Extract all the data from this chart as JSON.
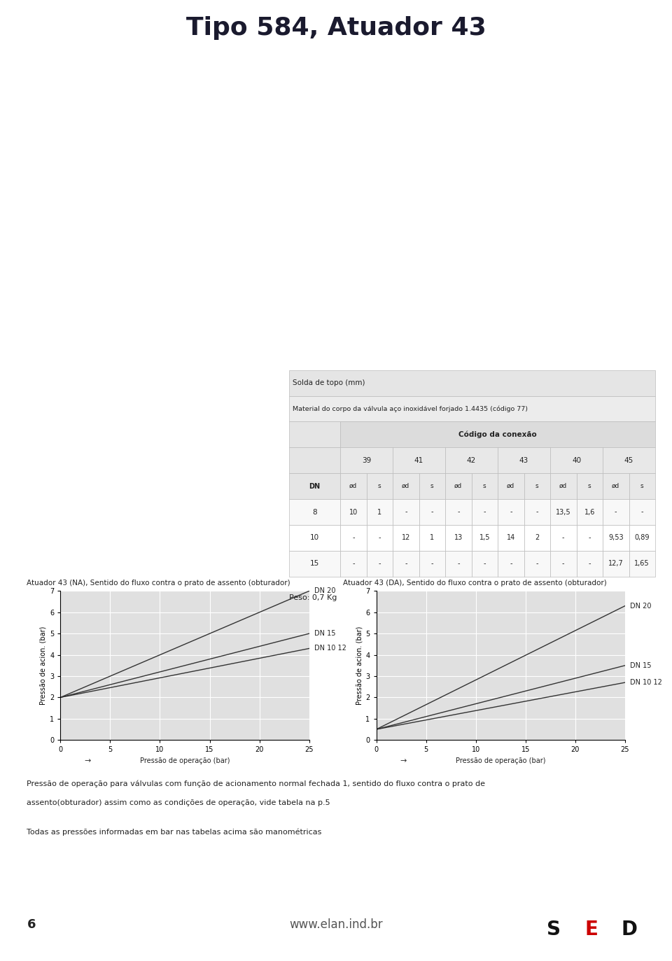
{
  "title": "Tipo 584, Atuador 43",
  "title_bg": "#c5c8d5",
  "title_color": "#1a1a2e",
  "red_line_color": "#cc0000",
  "page_bg": "#ffffff",
  "table_header1": "Solda de topo (mm)",
  "table_header2": "Material do corpo da válvula aço inoxidável forjado 1.4435 (código 77)",
  "table_header3": "Código da conexão",
  "col_group_labels": [
    "39",
    "41",
    "42",
    "43",
    "40",
    "45"
  ],
  "table_subheader": [
    "DN",
    "ød",
    "s",
    "ød",
    "s",
    "ød",
    "s",
    "ød",
    "s",
    "ød",
    "s",
    "ød",
    "s"
  ],
  "table_rows": [
    [
      "8",
      "10",
      "1",
      "-",
      "-",
      "-",
      "-",
      "-",
      "-",
      "13,5",
      "1,6",
      "-",
      "-"
    ],
    [
      "10",
      "-",
      "-",
      "12",
      "1",
      "13",
      "1,5",
      "14",
      "2",
      "-",
      "-",
      "9,53",
      "0,89"
    ],
    [
      "15",
      "-",
      "-",
      "-",
      "-",
      "-",
      "-",
      "-",
      "-",
      "-",
      "-",
      "12,7",
      "1,65"
    ]
  ],
  "peso": "Peso: 0,7 Kg",
  "chart_bg": "#e0e0e0",
  "chart_grid_color": "#ffffff",
  "chart_line_color": "#333333",
  "na_title": "Atuador 43 (NA), Sentido do fluxo contra o prato de assento (obturador)",
  "da_title": "Atuador 43 (DA), Sentido do fluxo contra o prato de assento (obturador)",
  "x_label": "Pressão de operação (bar)",
  "y_label": "Pressão de acion. (bar)",
  "x_range": [
    0,
    25
  ],
  "y_range": [
    0,
    7
  ],
  "x_ticks": [
    0,
    5,
    10,
    15,
    20,
    25
  ],
  "y_ticks": [
    0,
    1,
    2,
    3,
    4,
    5,
    6,
    7
  ],
  "na_lines": [
    {
      "label": "DN 20",
      "x": [
        0,
        25
      ],
      "y": [
        2.0,
        7.0
      ]
    },
    {
      "label": "DN 15",
      "x": [
        0,
        25
      ],
      "y": [
        2.0,
        5.0
      ]
    },
    {
      "label": "DN 10 12",
      "x": [
        0,
        25
      ],
      "y": [
        2.0,
        4.3
      ]
    }
  ],
  "da_lines": [
    {
      "label": "DN 20",
      "x": [
        0,
        25
      ],
      "y": [
        0.5,
        6.3
      ]
    },
    {
      "label": "DN 15",
      "x": [
        0,
        25
      ],
      "y": [
        0.5,
        3.5
      ]
    },
    {
      "label": "DN 10 12",
      "x": [
        0,
        25
      ],
      "y": [
        0.5,
        2.7
      ]
    }
  ],
  "footnote1": "Pressão de operação para válvulas com função de acionamento normal fechada 1, sentido do fluxo contra o prato de",
  "footnote2": "assento(obturador) assim como as condições de operação, vide tabela na p.5",
  "footnote3": "Todas as pressões informadas em bar nas tabelas acima são manométricas",
  "footer_page": "6",
  "footer_url": "www.elan.ind.br"
}
